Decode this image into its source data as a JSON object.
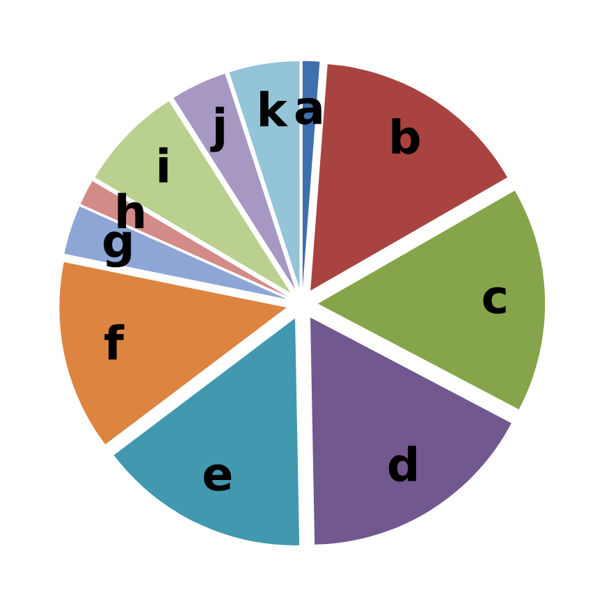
{
  "chart_data": {
    "type": "pie",
    "categories": [
      "a",
      "b",
      "c",
      "d",
      "e",
      "f",
      "g",
      "h",
      "i",
      "j",
      "k"
    ],
    "values": [
      1.2,
      15.5,
      16,
      17,
      15,
      13.5,
      3.5,
      1.8,
      7.5,
      4,
      5
    ],
    "colors": [
      "#3e6fae",
      "#a84340",
      "#86a44a",
      "#71588f",
      "#4198af",
      "#dd8440",
      "#8ea6d6",
      "#d38b88",
      "#b9d08f",
      "#a698c2",
      "#93c4d8"
    ]
  }
}
